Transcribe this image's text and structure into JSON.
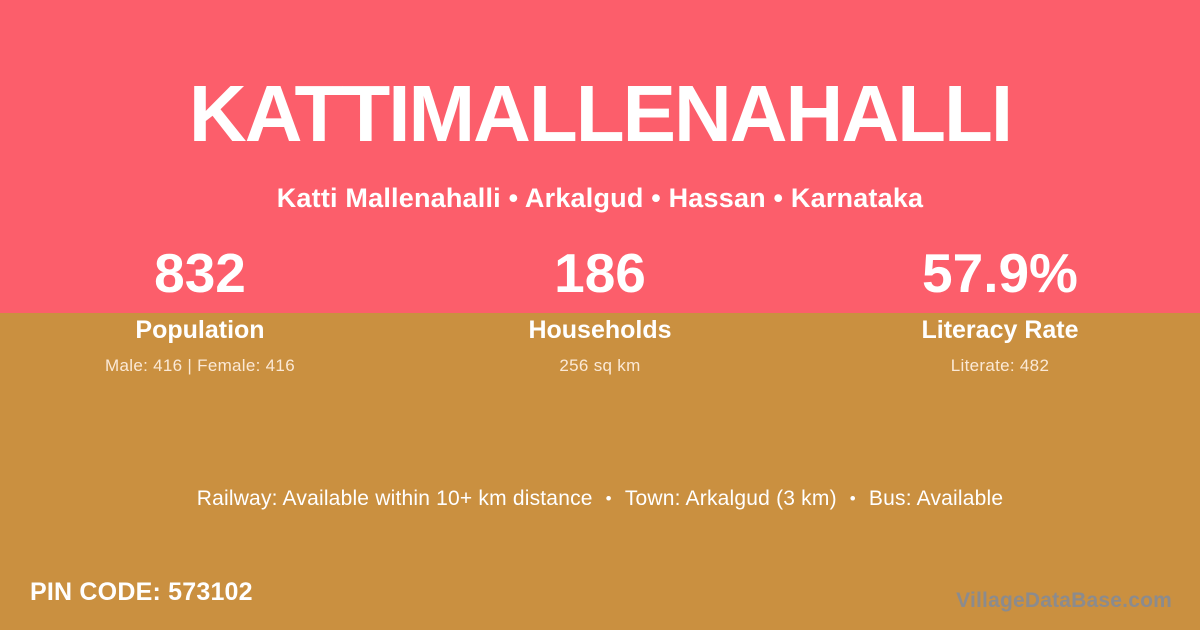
{
  "theme": {
    "top_background": "#fc5e6b",
    "bottom_background": "#ca9040",
    "primary_text": "#ffffff",
    "detail_text": "#fff1e3",
    "watermark_text": "#8b8b8e"
  },
  "header": {
    "title": "KATTIMALLENAHALLI",
    "subtitle": "Katti Mallenahalli • Arkalgud • Hassan • Karnataka"
  },
  "stats": [
    {
      "value": "832",
      "label": "Population",
      "detail": "Male: 416 | Female: 416"
    },
    {
      "value": "186",
      "label": "Households",
      "detail": "256 sq km"
    },
    {
      "value": "57.9%",
      "label": "Literacy Rate",
      "detail": "Literate: 482"
    }
  ],
  "amenities": {
    "railway": "Railway: Available within 10+ km distance",
    "town": "Town: Arkalgud (3 km)",
    "bus": "Bus: Available",
    "separator": "•"
  },
  "footer": {
    "pin_label": "PIN CODE:",
    "pin_value": "573102",
    "watermark": "VillageDataBase.com"
  }
}
